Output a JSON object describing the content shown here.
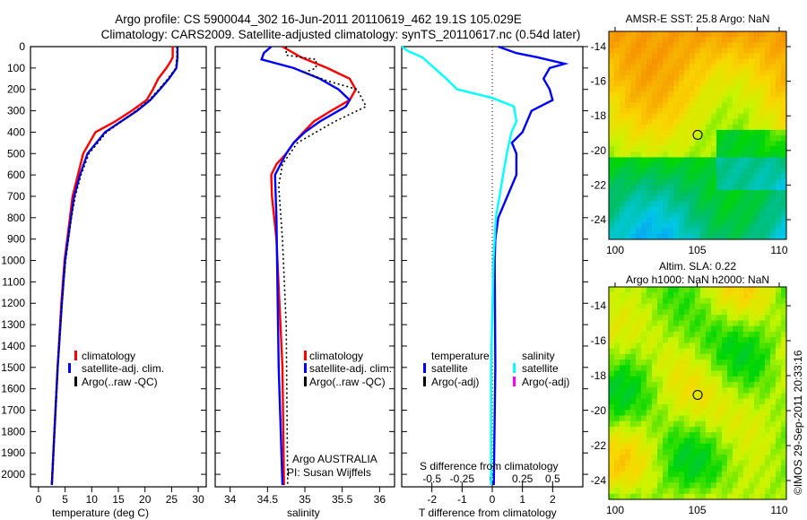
{
  "title_line1": "Argo profile: CS 5900044_302 16-Jun-2011 20110619_462 19.1S 105.029E",
  "title_line2": "Climatology: CARS2009. Satellite-adjusted climatology: synTS_20110617.nc (0.54d later)",
  "copyright": "©IMOS 29-Sep-2011 20:33:16",
  "colors": {
    "climatology": "#ff0000",
    "satellite": "#0000ff",
    "argo": "#000000",
    "salinity_sat": "#00ffff",
    "salinity_argo": "#ff00ff"
  },
  "chart_data": [
    {
      "type": "line",
      "xlabel": "temperature (deg C)",
      "xlim": [
        -1.5,
        31.5
      ],
      "xticks": [
        0,
        5,
        10,
        15,
        20,
        25,
        30
      ],
      "ylim": [
        2050,
        0
      ],
      "yticks": [
        0,
        100,
        200,
        300,
        400,
        500,
        600,
        700,
        800,
        900,
        1000,
        1100,
        1200,
        1300,
        1400,
        1500,
        1600,
        1700,
        1800,
        1900,
        2000
      ],
      "legend": [
        "climatology",
        "satellite-adj. clim.",
        "Argo(..raw -QC)"
      ],
      "series": [
        {
          "name": "climatology",
          "color": "#ff0000",
          "dash": false,
          "depth": [
            0,
            50,
            70,
            100,
            150,
            200,
            250,
            300,
            350,
            400,
            500,
            600,
            700,
            800,
            1000,
            1200,
            1500,
            1800,
            2050
          ],
          "values": [
            25.2,
            25.2,
            24.8,
            24,
            22.5,
            21.5,
            20.3,
            17.5,
            14.4,
            10.7,
            8.4,
            7.4,
            6.4,
            5.9,
            4.9,
            4.3,
            3.6,
            3,
            2.5
          ]
        },
        {
          "name": "satellite-adj. clim.",
          "color": "#0000ff",
          "dash": false,
          "depth": [
            0,
            50,
            100,
            150,
            200,
            250,
            300,
            350,
            400,
            500,
            600,
            700,
            800,
            1000,
            1200,
            1500,
            1800,
            2050
          ],
          "values": [
            26.1,
            26.1,
            25.9,
            24.5,
            22.8,
            21,
            18.5,
            15.5,
            12.5,
            9.2,
            7.8,
            6.7,
            6.1,
            5,
            4.4,
            3.6,
            3,
            2.5
          ]
        },
        {
          "name": "Argo(..raw -QC)",
          "color": "#000000",
          "dash": true,
          "depth": [
            0,
            50,
            100,
            150,
            200,
            250,
            300,
            350,
            400,
            500,
            600,
            700,
            800,
            1000,
            1200,
            1500,
            1800,
            2050
          ],
          "values": [
            26,
            26,
            25.8,
            24.3,
            22.6,
            20.8,
            18.3,
            15.6,
            12.8,
            9.5,
            8,
            6.9,
            6.2,
            5.1,
            4.4,
            3.6,
            3,
            2.5
          ]
        }
      ]
    },
    {
      "type": "line",
      "xlabel": "salinity",
      "xlim": [
        33.8,
        36.2
      ],
      "xticks": [
        34,
        34.5,
        35,
        35.5,
        36
      ],
      "ylim": [
        2050,
        0
      ],
      "legend": [
        "climatology",
        "satellite-adj. clim.",
        "Argo(..raw -QC)"
      ],
      "annotations": [
        "Argo AUSTRALIA",
        "PI: Susan Wijffels"
      ],
      "series": [
        {
          "name": "climatology",
          "color": "#ff0000",
          "dash": false,
          "depth": [
            0,
            50,
            100,
            150,
            200,
            250,
            300,
            350,
            400,
            450,
            500,
            550,
            600,
            700,
            900,
            1500,
            2050
          ],
          "values": [
            34.7,
            34.95,
            35.3,
            35.6,
            35.68,
            35.6,
            35.35,
            35.12,
            34.98,
            34.85,
            34.75,
            34.62,
            34.55,
            34.56,
            34.62,
            34.7,
            34.72
          ]
        },
        {
          "name": "satellite-adj. clim.",
          "color": "#0000ff",
          "dash": false,
          "depth": [
            0,
            30,
            60,
            100,
            150,
            200,
            250,
            280,
            300,
            350,
            400,
            450,
            500,
            600,
            800,
            1500,
            2050
          ],
          "values": [
            34.55,
            34.45,
            34.42,
            34.85,
            35.2,
            35.45,
            35.6,
            35.55,
            35.45,
            35.2,
            35.0,
            34.85,
            34.75,
            34.6,
            34.62,
            34.65,
            34.7
          ]
        },
        {
          "name": "Argo(..raw -QC)",
          "color": "#000000",
          "dash": true,
          "depth": [
            0,
            40,
            60,
            100,
            120,
            160,
            200,
            280,
            350,
            450,
            550,
            650,
            900,
            1300,
            2050
          ],
          "values": [
            34.75,
            34.75,
            35.15,
            35.15,
            35.0,
            35.3,
            35.7,
            35.82,
            35.4,
            34.9,
            34.7,
            34.65,
            34.7,
            34.75,
            34.77
          ]
        }
      ]
    },
    {
      "type": "line",
      "xlabel": "T difference from climatology",
      "x2label": "S difference from climatology",
      "xlim": [
        -3,
        3
      ],
      "xticks": [
        -2,
        -1,
        0,
        1,
        2
      ],
      "x2ticks": [
        -0.5,
        -0.25,
        0,
        0.25,
        0.5
      ],
      "ylim": [
        2050,
        0
      ],
      "legend_headers": [
        "temperature",
        "salinity"
      ],
      "legend": [
        "satellite",
        "Argo(-adj)",
        "satellite",
        "Argo(-adj)"
      ],
      "series": [
        {
          "name": "temperature satellite",
          "color": "#0000ff",
          "depth": [
            0,
            30,
            50,
            80,
            100,
            150,
            200,
            250,
            300,
            400,
            450,
            500,
            600,
            700,
            800,
            900,
            1000,
            1500,
            2050
          ],
          "values": [
            0.2,
            0.8,
            1.5,
            2.4,
            1.9,
            1.7,
            1.9,
            2.0,
            1.3,
            1.0,
            0.65,
            0.8,
            0.8,
            0.5,
            0.2,
            0.1,
            0.08,
            0.1,
            0.05
          ]
        },
        {
          "name": "salinity satellite",
          "color": "#00ffff",
          "depth": [
            0,
            20,
            50,
            100,
            150,
            200,
            240,
            280,
            350,
            400,
            500,
            600,
            700,
            800,
            1000,
            1500,
            2050
          ],
          "values": [
            -0.75,
            -0.7,
            -0.58,
            -0.48,
            -0.38,
            -0.29,
            0,
            0.18,
            0.2,
            0.16,
            0.12,
            0.09,
            0.06,
            0.03,
            0.01,
            -0.01,
            -0.01
          ]
        }
      ]
    }
  ],
  "maps": [
    {
      "title": "AMSR-E SST: 25.8 Argo: NaN",
      "lon_ticks": [
        "100",
        "105",
        "110"
      ],
      "lat_ticks": [
        "-14",
        "-16",
        "-18",
        "-20",
        "-22",
        "-24"
      ],
      "argo_lon": 105.03,
      "argo_lat": -19.1
    },
    {
      "title1": "Altim. SLA: 0.22",
      "title2": "Argo h1000: NaN h2000: NaN",
      "lon_ticks": [
        "100",
        "105",
        "110"
      ],
      "lat_ticks": [
        "-14",
        "-16",
        "-18",
        "-20",
        "-22",
        "-24"
      ],
      "argo_lon": 105.03,
      "argo_lat": -19.1
    }
  ]
}
